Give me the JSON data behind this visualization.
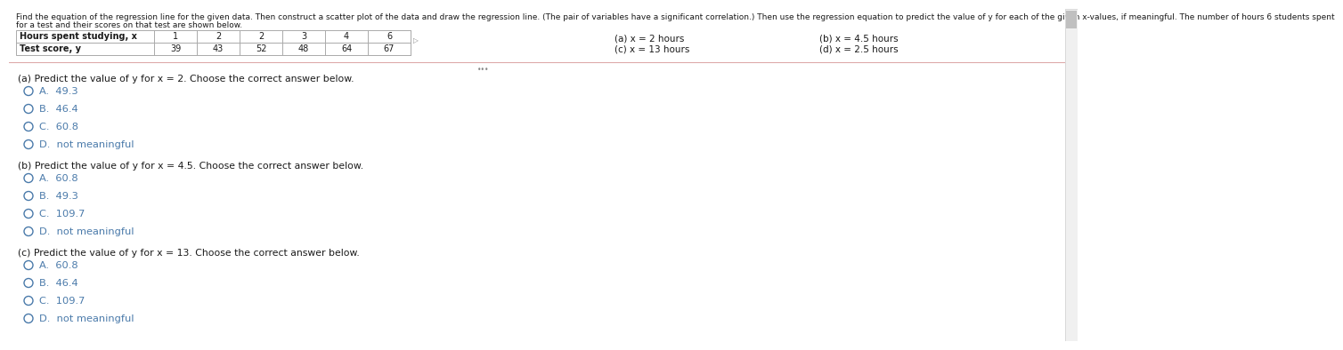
{
  "intro_line1": "Find the equation of the regression line for the given data. Then construct a scatter plot of the data and draw the regression line. (The pair of variables have a significant correlation.) Then use the regression equation to predict the value of y for each of the given x-values, if meaningful. The number of hours 6 students spent",
  "intro_line2": "for a test and their scores on that test are shown below.",
  "table_header_col0": "Hours spent studying, x",
  "table_row2_col0": "Test score, y",
  "table_data_row1": [
    "1",
    "2",
    "2",
    "3",
    "4",
    "6"
  ],
  "table_data_row2": [
    "39",
    "43",
    "52",
    "48",
    "64",
    "67"
  ],
  "xval_left": [
    "(a) x = 2 hours",
    "(c) x = 13 hours"
  ],
  "xval_right": [
    "(b) x = 4.5 hours",
    "(d) x = 2.5 hours"
  ],
  "section_a_q": "(a) Predict the value of y for x = 2. Choose the correct answer below.",
  "section_a_opts": [
    "A.  49.3",
    "B.  46.4",
    "C.  60.8",
    "D.  not meaningful"
  ],
  "section_b_q": "(b) Predict the value of y for x = 4.5. Choose the correct answer below.",
  "section_b_opts": [
    "A.  60.8",
    "B.  49.3",
    "C.  109.7",
    "D.  not meaningful"
  ],
  "section_c_q": "(c) Predict the value of y for x = 13. Choose the correct answer below.",
  "section_c_opts": [
    "A.  60.8",
    "B.  46.4",
    "C.  109.7",
    "D.  not meaningful"
  ],
  "bg_color": "#ffffff",
  "text_color": "#1a1a1a",
  "link_color": "#4a7aaa",
  "table_border_color": "#aaaaaa",
  "separator_color": "#ddaaaa",
  "scrollbar_bg": "#f0f0f0",
  "scrollbar_thumb": "#c0c0c0",
  "intro_fontsize": 6.5,
  "table_fontsize": 7.0,
  "question_fontsize": 7.8,
  "option_fontsize": 8.2,
  "xval_fontsize": 7.5
}
